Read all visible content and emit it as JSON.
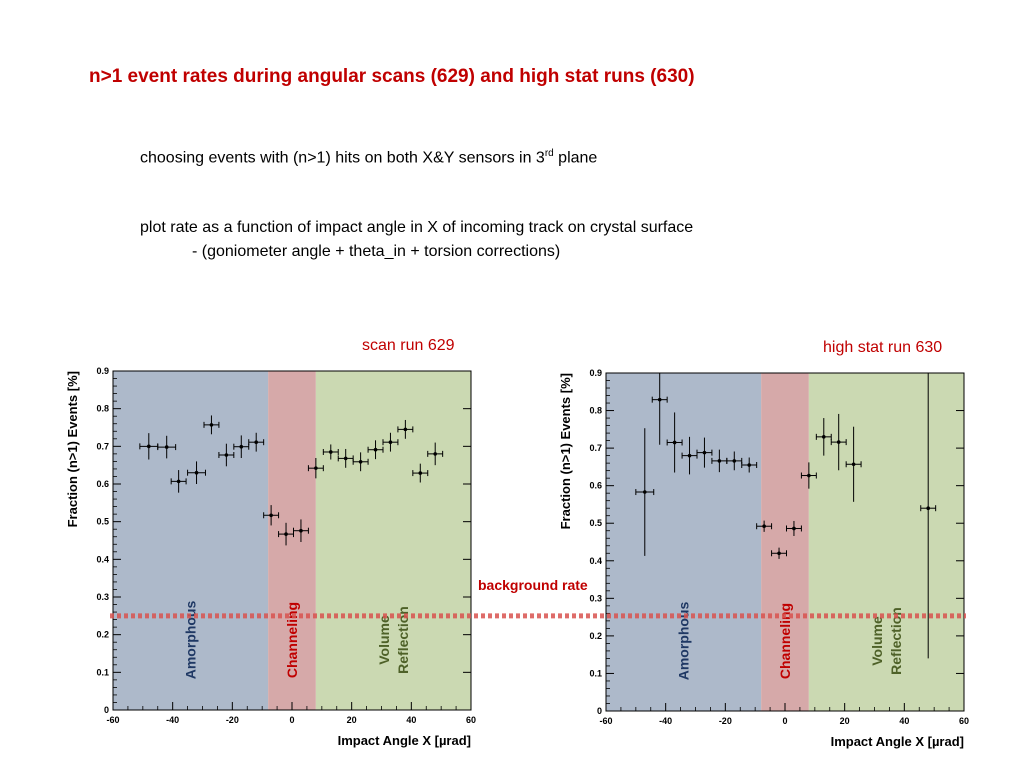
{
  "title": "n>1 event rates during angular scans (629) and high stat runs (630)",
  "bullets": {
    "line1_main": "choosing events with (n>1) hits on both X&Y sensors in 3",
    "line1_sup": "rd",
    "line1_end": " plane",
    "line2": "plot rate as a function of impact angle in X of incoming track on crystal surface",
    "line3": "- (goniometer angle + theta_in + torsion corrections)"
  },
  "background_label": "background rate",
  "colors": {
    "title": "#c00000",
    "amorphous_bg": "#adb9ca",
    "channeling_bg": "#d6a9a9",
    "volume_bg": "#cbd9b2",
    "amorphous_text": "#1f3864",
    "channeling_text": "#c00000",
    "volume_text": "#4e6128",
    "background_line": "#d9534f"
  },
  "chart_data": [
    {
      "type": "scatter",
      "caption": "scan run 629",
      "xlabel": "Impact Angle X [µrad]",
      "ylabel": "Fraction (n>1) Events [%]",
      "xlim": [
        -60,
        60
      ],
      "ylim": [
        0,
        0.9
      ],
      "xticks": [
        "-60",
        "-40",
        "-20",
        "0",
        "20",
        "40",
        "60"
      ],
      "yticks": [
        "0",
        "0.1",
        "0.2",
        "0.3",
        "0.4",
        "0.5",
        "0.6",
        "0.7",
        "0.8",
        "0.9"
      ],
      "regions": [
        {
          "label": "Amorphous",
          "from": -60,
          "to": -8
        },
        {
          "label": "Channeling",
          "from": -8,
          "to": 8
        },
        {
          "label": "Volume Reflection",
          "label_lines": [
            "Volume",
            "Reflection"
          ],
          "from": 8,
          "to": 60
        }
      ],
      "background_rate": 0.287,
      "points": [
        {
          "x": -48,
          "y": 0.7,
          "xerr": 3,
          "yerr": 0.035
        },
        {
          "x": -42,
          "y": 0.698,
          "xerr": 3,
          "yerr": 0.03
        },
        {
          "x": -38,
          "y": 0.607,
          "xerr": 2.5,
          "yerr": 0.03
        },
        {
          "x": -32,
          "y": 0.63,
          "xerr": 3,
          "yerr": 0.03
        },
        {
          "x": -27,
          "y": 0.757,
          "xerr": 2.5,
          "yerr": 0.025
        },
        {
          "x": -22,
          "y": 0.677,
          "xerr": 2.5,
          "yerr": 0.03
        },
        {
          "x": -17,
          "y": 0.699,
          "xerr": 2.5,
          "yerr": 0.03
        },
        {
          "x": -12,
          "y": 0.711,
          "xerr": 2.5,
          "yerr": 0.025
        },
        {
          "x": -7,
          "y": 0.517,
          "xerr": 2.5,
          "yerr": 0.027
        },
        {
          "x": -2,
          "y": 0.467,
          "xerr": 2.5,
          "yerr": 0.03
        },
        {
          "x": 3,
          "y": 0.476,
          "xerr": 2.5,
          "yerr": 0.03
        },
        {
          "x": 8,
          "y": 0.642,
          "xerr": 2.5,
          "yerr": 0.027
        },
        {
          "x": 13,
          "y": 0.685,
          "xerr": 2.5,
          "yerr": 0.02
        },
        {
          "x": 18,
          "y": 0.668,
          "xerr": 2.5,
          "yerr": 0.025
        },
        {
          "x": 23,
          "y": 0.659,
          "xerr": 2.5,
          "yerr": 0.025
        },
        {
          "x": 28,
          "y": 0.691,
          "xerr": 2.5,
          "yerr": 0.025
        },
        {
          "x": 33,
          "y": 0.711,
          "xerr": 2.5,
          "yerr": 0.025
        },
        {
          "x": 38,
          "y": 0.745,
          "xerr": 2.5,
          "yerr": 0.025
        },
        {
          "x": 43,
          "y": 0.629,
          "xerr": 2.5,
          "yerr": 0.025
        },
        {
          "x": 48,
          "y": 0.68,
          "xerr": 2.5,
          "yerr": 0.03
        }
      ]
    },
    {
      "type": "scatter",
      "caption": "high stat run 630",
      "xlabel": "Impact Angle X [µrad]",
      "ylabel": "Fraction (n>1) Events [%]",
      "xlim": [
        -60,
        60
      ],
      "ylim": [
        0,
        0.9
      ],
      "xticks": [
        "-60",
        "-40",
        "-20",
        "0",
        "20",
        "40",
        "60"
      ],
      "yticks": [
        "0",
        "0.1",
        "0.2",
        "0.3",
        "0.4",
        "0.5",
        "0.6",
        "0.7",
        "0.8",
        "0.9"
      ],
      "regions": [
        {
          "label": "Amorphous",
          "from": -60,
          "to": -8
        },
        {
          "label": "Channeling",
          "from": -8,
          "to": 8
        },
        {
          "label": "Volume Reflection",
          "label_lines": [
            "Volume",
            "Reflection"
          ],
          "from": 8,
          "to": 60
        }
      ],
      "background_rate": 0.287,
      "points": [
        {
          "x": -47,
          "y": 0.583,
          "xerr": 3,
          "yerr": 0.17
        },
        {
          "x": -42,
          "y": 0.829,
          "xerr": 2.5,
          "yerr": 0.12
        },
        {
          "x": -37,
          "y": 0.715,
          "xerr": 2.5,
          "yerr": 0.08
        },
        {
          "x": -32,
          "y": 0.68,
          "xerr": 2.5,
          "yerr": 0.05
        },
        {
          "x": -27,
          "y": 0.688,
          "xerr": 2.5,
          "yerr": 0.04
        },
        {
          "x": -22,
          "y": 0.666,
          "xerr": 2.5,
          "yerr": 0.03
        },
        {
          "x": -17,
          "y": 0.666,
          "xerr": 2.5,
          "yerr": 0.025
        },
        {
          "x": -12,
          "y": 0.655,
          "xerr": 2.5,
          "yerr": 0.02
        },
        {
          "x": -7,
          "y": 0.492,
          "xerr": 2.5,
          "yerr": 0.015
        },
        {
          "x": -2,
          "y": 0.42,
          "xerr": 2.5,
          "yerr": 0.015
        },
        {
          "x": 3,
          "y": 0.486,
          "xerr": 2.5,
          "yerr": 0.02
        },
        {
          "x": 8,
          "y": 0.627,
          "xerr": 2.5,
          "yerr": 0.035
        },
        {
          "x": 13,
          "y": 0.73,
          "xerr": 2.5,
          "yerr": 0.05
        },
        {
          "x": 18,
          "y": 0.716,
          "xerr": 2.5,
          "yerr": 0.075
        },
        {
          "x": 23,
          "y": 0.657,
          "xerr": 2.5,
          "yerr": 0.1
        },
        {
          "x": 48,
          "y": 0.54,
          "xerr": 2.5,
          "yerr": 0.4
        }
      ]
    }
  ]
}
